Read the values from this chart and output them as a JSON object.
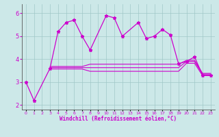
{
  "xlabel": "Windchill (Refroidissement éolien,°C)",
  "background_color": "#cce8e8",
  "line_color": "#cc00cc",
  "xlim": [
    -0.5,
    23.5
  ],
  "ylim": [
    1.8,
    6.4
  ],
  "yticks": [
    2,
    3,
    4,
    5,
    6
  ],
  "xtick_labels": [
    "0",
    "1",
    "2",
    "3",
    "4",
    "5",
    "6",
    "7",
    "8",
    "9",
    "10",
    "11",
    "12",
    "13",
    "14",
    "15",
    "16",
    "17",
    "18",
    "19",
    "20",
    "21",
    "22",
    "23"
  ],
  "series1_x": [
    0,
    1,
    3,
    4,
    5,
    6,
    7,
    8,
    10,
    11,
    12,
    14,
    15,
    16,
    17,
    18,
    19,
    20,
    21,
    22,
    23
  ],
  "series1_y": [
    3.0,
    2.2,
    3.6,
    5.2,
    5.6,
    5.7,
    5.0,
    4.4,
    5.9,
    5.8,
    5.0,
    5.6,
    4.9,
    5.0,
    5.3,
    5.05,
    3.8,
    3.9,
    4.1,
    3.3,
    3.3
  ],
  "flat1_x": [
    3,
    4,
    5,
    6,
    7,
    8,
    9,
    10,
    11,
    12,
    13,
    14,
    15,
    16,
    17,
    18,
    19,
    20,
    21,
    22,
    23
  ],
  "flat1_y": [
    3.63,
    3.63,
    3.63,
    3.63,
    3.63,
    3.63,
    3.63,
    3.63,
    3.63,
    3.63,
    3.63,
    3.63,
    3.63,
    3.63,
    3.63,
    3.63,
    3.63,
    3.9,
    3.9,
    3.35,
    3.35
  ],
  "flat2_x": [
    3,
    4,
    5,
    6,
    7,
    8,
    9,
    10,
    11,
    12,
    13,
    14,
    15,
    16,
    17,
    18,
    19,
    20,
    21,
    22,
    23
  ],
  "flat2_y": [
    3.57,
    3.57,
    3.57,
    3.57,
    3.57,
    3.47,
    3.47,
    3.47,
    3.47,
    3.47,
    3.47,
    3.47,
    3.47,
    3.47,
    3.47,
    3.47,
    3.47,
    3.82,
    3.82,
    3.28,
    3.28
  ],
  "flat3_x": [
    3,
    4,
    5,
    6,
    7,
    8,
    9,
    10,
    11,
    12,
    13,
    14,
    15,
    16,
    17,
    18,
    19,
    20,
    21,
    22,
    23
  ],
  "flat3_y": [
    3.68,
    3.68,
    3.68,
    3.68,
    3.68,
    3.78,
    3.78,
    3.78,
    3.78,
    3.78,
    3.78,
    3.78,
    3.78,
    3.78,
    3.78,
    3.78,
    3.78,
    3.95,
    3.95,
    3.38,
    3.38
  ]
}
